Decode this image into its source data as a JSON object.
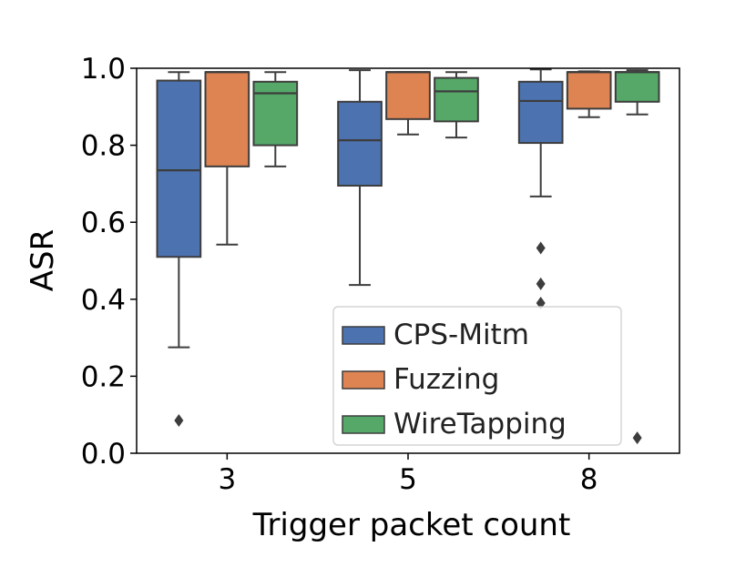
{
  "chart_data": {
    "type": "box",
    "title": "",
    "xlabel": "Trigger packet count",
    "ylabel": "ASR",
    "ylim": [
      0.0,
      1.0
    ],
    "yticks": [
      "0.0",
      "0.2",
      "0.4",
      "0.6",
      "0.8",
      "1.0"
    ],
    "categories": [
      "3",
      "5",
      "8"
    ],
    "legend": {
      "placement": "lower-right"
    },
    "series": [
      {
        "name": "CPS-Mitm",
        "color": "#4c72b0",
        "boxes": [
          {
            "category": "3",
            "whisker_low": 0.275,
            "q1": 0.51,
            "median": 0.735,
            "q3": 0.968,
            "whisker_high": 0.99,
            "outliers": [
              0.085
            ]
          },
          {
            "category": "5",
            "whisker_low": 0.437,
            "q1": 0.695,
            "median": 0.813,
            "q3": 0.913,
            "whisker_high": 0.995,
            "outliers": []
          },
          {
            "category": "8",
            "whisker_low": 0.667,
            "q1": 0.806,
            "median": 0.915,
            "q3": 0.965,
            "whisker_high": 0.997,
            "outliers": [
              0.533,
              0.44,
              0.39
            ]
          }
        ]
      },
      {
        "name": "Fuzzing",
        "color": "#dd8452",
        "boxes": [
          {
            "category": "3",
            "whisker_low": 0.542,
            "q1": 0.745,
            "median": 0.99,
            "q3": 0.99,
            "whisker_high": 0.99,
            "outliers": []
          },
          {
            "category": "5",
            "whisker_low": 0.828,
            "q1": 0.868,
            "median": 0.99,
            "q3": 0.99,
            "whisker_high": 0.99,
            "outliers": []
          },
          {
            "category": "8",
            "whisker_low": 0.873,
            "q1": 0.895,
            "median": 0.99,
            "q3": 0.99,
            "whisker_high": 0.992,
            "outliers": []
          }
        ]
      },
      {
        "name": "WireTapping",
        "color": "#55a868",
        "boxes": [
          {
            "category": "3",
            "whisker_low": 0.745,
            "q1": 0.8,
            "median": 0.935,
            "q3": 0.965,
            "whisker_high": 0.99,
            "outliers": []
          },
          {
            "category": "5",
            "whisker_low": 0.82,
            "q1": 0.862,
            "median": 0.94,
            "q3": 0.975,
            "whisker_high": 0.99,
            "outliers": []
          },
          {
            "category": "8",
            "whisker_low": 0.88,
            "q1": 0.913,
            "median": 0.99,
            "q3": 0.99,
            "whisker_high": 0.995,
            "outliers": [
              0.04
            ]
          }
        ]
      }
    ]
  }
}
